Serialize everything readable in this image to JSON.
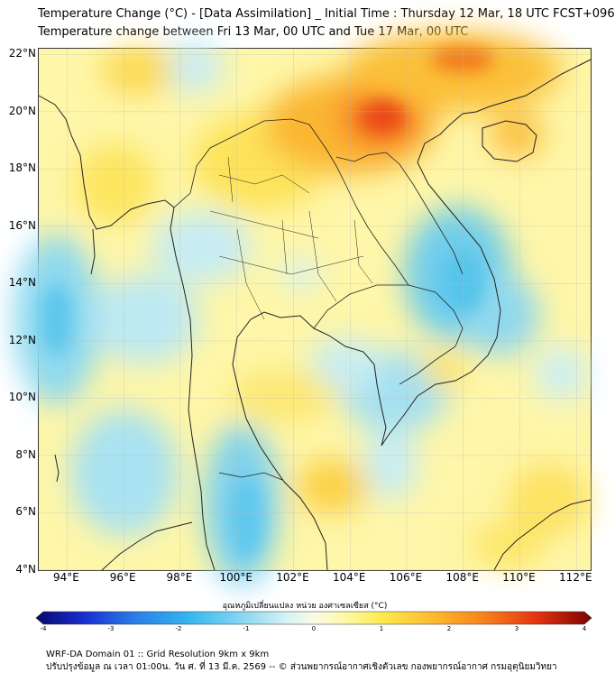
{
  "header": {
    "title": "Temperature Change (°C) - [Data Assimilation] _ Initial Time : Thursday 12 Mar, 18 UTC FCST+096",
    "subtitle": "Temperature change between Fri 13 Mar, 00 UTC and Tue 17 Mar, 00 UTC"
  },
  "map": {
    "lat_labels": [
      "22°N",
      "20°N",
      "18°N",
      "16°N",
      "14°N",
      "12°N",
      "10°N",
      "8°N",
      "6°N",
      "4°N"
    ],
    "lat_values": [
      22,
      20,
      18,
      16,
      14,
      12,
      10,
      8,
      6,
      4
    ],
    "lon_labels": [
      "94°E",
      "96°E",
      "98°E",
      "100°E",
      "102°E",
      "104°E",
      "106°E",
      "108°E",
      "110°E",
      "112°E"
    ],
    "lon_values": [
      94,
      96,
      98,
      100,
      102,
      104,
      106,
      108,
      110,
      112
    ],
    "lon_range": [
      93,
      112.5
    ],
    "lat_range": [
      4,
      22.2
    ],
    "colors": {
      "land_outline": "#222222",
      "border": "#333333",
      "gridline": "#bbbbbb"
    }
  },
  "colorbar": {
    "title": "อุณหภูมิเปลี่ยนแปลง หน่วย องศาเซลเซียส (°C)",
    "ticks": [
      "-4",
      "-3",
      "-2",
      "-1",
      "0",
      "1",
      "2",
      "3",
      "4"
    ],
    "tick_values": [
      -4,
      -3,
      -2,
      -1,
      0,
      1,
      2,
      3,
      4
    ],
    "range": [
      -4,
      4
    ],
    "stops": [
      {
        "v": -4,
        "c": "#08086e"
      },
      {
        "v": -3.3,
        "c": "#1a2fd0"
      },
      {
        "v": -2.6,
        "c": "#2a7be8"
      },
      {
        "v": -1.8,
        "c": "#34b6f0"
      },
      {
        "v": -1.0,
        "c": "#8ad8f2"
      },
      {
        "v": -0.4,
        "c": "#d6f2f4"
      },
      {
        "v": 0,
        "c": "#fbfbe6"
      },
      {
        "v": 0.5,
        "c": "#fdf8a0"
      },
      {
        "v": 1.0,
        "c": "#fde94c"
      },
      {
        "v": 1.8,
        "c": "#fbb52a"
      },
      {
        "v": 2.5,
        "c": "#f77d1a"
      },
      {
        "v": 3.2,
        "c": "#e5340f"
      },
      {
        "v": 4,
        "c": "#7a0303"
      }
    ]
  },
  "footer": {
    "line1": "WRF-DA Domain 01 :: Grid Resolution 9km x 9km",
    "line2": "ปรับปรุงข้อมูล ณ เวลา 01:00น. วัน ศ. ที่ 13 มี.ค. 2569 -- © ส่วนพยากรณ์อากาศเชิงตัวเลข กองพยากรณ์อากาศ กรมอุตุนิยมวิทยา"
  }
}
